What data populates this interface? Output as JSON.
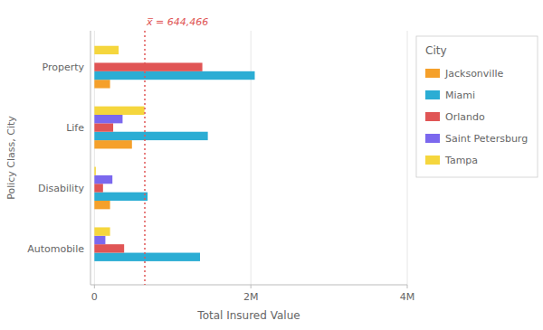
{
  "chart_data": {
    "type": "bar",
    "orientation": "horizontal",
    "categories": [
      "Automobile",
      "Disability",
      "Life",
      "Property"
    ],
    "series": [
      {
        "name": "Jacksonville",
        "color": "#F5A02A",
        "values": [
          0,
          200000,
          480000,
          200000
        ]
      },
      {
        "name": "Miami",
        "color": "#2BADD4",
        "values": [
          1350000,
          680000,
          1450000,
          2050000
        ]
      },
      {
        "name": "Orlando",
        "color": "#E05555",
        "values": [
          380000,
          110000,
          240000,
          1380000
        ]
      },
      {
        "name": "Saint Petersburg",
        "color": "#7B68EE",
        "values": [
          140000,
          230000,
          360000,
          0
        ]
      },
      {
        "name": "Tampa",
        "color": "#F5D63D",
        "values": [
          200000,
          18000,
          640000,
          310000
        ]
      }
    ],
    "xlabel": "Total Insured Value",
    "ylabel": "Policy Class, City",
    "xlim": [
      -50000,
      4000000
    ],
    "xticks": [
      0,
      {
        "value": 2000000,
        "label": "2M"
      },
      {
        "value": 4000000,
        "label": "4M"
      }
    ],
    "grid": true,
    "legend": "right",
    "legend_title": "City",
    "annotations": [
      {
        "text": "x̅ = 644,466",
        "x": 644466,
        "color": "#E05555"
      }
    ]
  }
}
